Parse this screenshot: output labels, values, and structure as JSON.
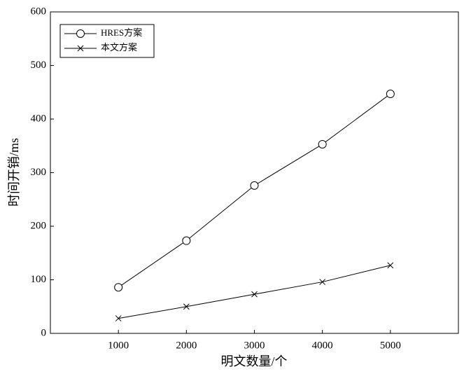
{
  "chart_data": {
    "type": "line",
    "x_label": "明文数量/个",
    "y_label": "时间开销/ms",
    "x": [
      1000,
      2000,
      3000,
      4000,
      5000
    ],
    "series": [
      {
        "name": "HRES方案",
        "color": "#000000",
        "marker": "circle",
        "values": [
          86,
          173,
          276,
          353,
          447
        ]
      },
      {
        "name": "本文方案",
        "color": "#000000",
        "marker": "x",
        "values": [
          28,
          50,
          73,
          96,
          127
        ]
      }
    ],
    "xlim": [
      0,
      6000
    ],
    "xticks": [
      1000,
      2000,
      3000,
      4000,
      5000
    ],
    "ylim": [
      0,
      600
    ],
    "yticks": [
      0,
      100,
      200,
      300,
      400,
      500,
      600
    ],
    "legend": "upper-left"
  }
}
